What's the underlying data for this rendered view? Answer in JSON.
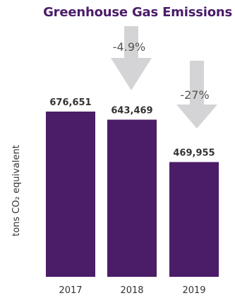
{
  "chart_data": {
    "type": "bar",
    "title": "Greenhouse Gas Emissions",
    "ylabel": "tons CO₂ equivalent",
    "xlabel": "",
    "categories": [
      "2017",
      "2018",
      "2019"
    ],
    "values": [
      676651,
      643469,
      469955
    ],
    "value_labels": [
      "676,651",
      "643,469",
      "469,955"
    ],
    "ylim": [
      0,
      676651
    ],
    "grid": false,
    "bar_color": "#4b1c68",
    "arrow_color": "#d4d4d6",
    "annotations": [
      {
        "text": "-4.9%",
        "category": "2018"
      },
      {
        "text": "-27%",
        "category": "2019"
      }
    ]
  }
}
